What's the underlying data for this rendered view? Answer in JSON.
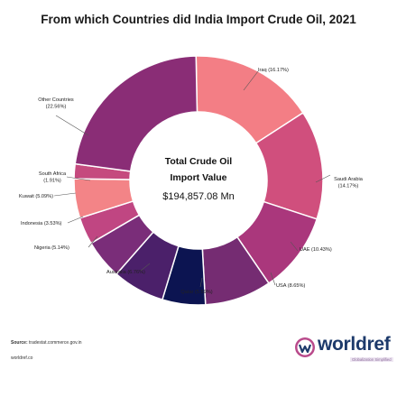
{
  "chart_data": {
    "type": "pie",
    "title": "From which Countries did India Import Crude Oil, 2021",
    "center_title_line1": "Total Crude Oil",
    "center_title_line2": "Import Value",
    "center_value": "$194,857.08 Mn",
    "slices": [
      {
        "name": "Iraq",
        "value": 16.17,
        "label": "Iraq (16.17%)",
        "color": "#f37e85"
      },
      {
        "name": "Saudi Arabia",
        "value": 14.17,
        "label": "Saudi Arabia (14.17%)",
        "color": "#d04f7d"
      },
      {
        "name": "UAE",
        "value": 10.43,
        "label": "UAE (10.43%)",
        "color": "#aa377c"
      },
      {
        "name": "USA",
        "value": 8.65,
        "label": "USA (8.65%)",
        "color": "#752c72"
      },
      {
        "name": "Qatar",
        "value": 5.59,
        "label": "Qatar (5.59%)",
        "color": "#0c1451"
      },
      {
        "name": "Australia",
        "value": 6.76,
        "label": "Australia (6.76%)",
        "color": "#4b206a"
      },
      {
        "name": "Nigeria",
        "value": 5.14,
        "label": "Nigeria (5.14%)",
        "color": "#7a2d79"
      },
      {
        "name": "Indonesia",
        "value": 3.53,
        "label": "Indonesia (3.53%)",
        "color": "#c04682"
      },
      {
        "name": "Kuwait",
        "value": 5.09,
        "label": "Kuwait (5.09%)",
        "color": "#f38487"
      },
      {
        "name": "South Africa",
        "value": 1.91,
        "label": "South Africa (1.91%)",
        "color": "#c54a7e"
      },
      {
        "name": "Other Countries",
        "value": 22.56,
        "label": "Other Countries (22.56%)",
        "color": "#8a2d76"
      }
    ]
  },
  "footer": {
    "source_label": "Source:",
    "source_text": "tradestat.commerce.gov.in",
    "site": "worldref.co"
  },
  "brand": {
    "name": "worldref",
    "tagline": "Globalization Simplified",
    "icon": "worldref-logo-icon"
  }
}
